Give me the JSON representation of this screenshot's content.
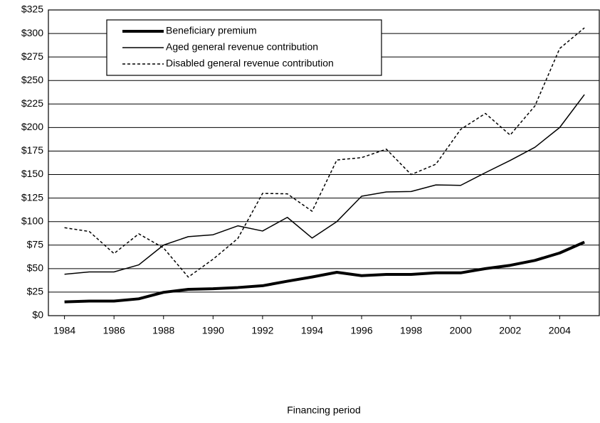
{
  "chart_data": {
    "type": "line",
    "x_label": "Financing period",
    "x": [
      1984,
      1985,
      1986,
      1987,
      1988,
      1989,
      1990,
      1991,
      1992,
      1993,
      1994,
      1995,
      1996,
      1997,
      1998,
      1999,
      2000,
      2001,
      2002,
      2003,
      2004,
      2005
    ],
    "series": [
      {
        "name": "Beneficiary premium",
        "color": "#000000",
        "width": 4,
        "dash": "none",
        "values": [
          14.6,
          15.5,
          15.5,
          17.9,
          24.8,
          28,
          28.6,
          29.9,
          31.8,
          36.6,
          41.1,
          46.1,
          42.5,
          43.8,
          43.8,
          45.5,
          45.5,
          50,
          53.5,
          58.7,
          66.6,
          78.2
        ]
      },
      {
        "name": "Aged general revenue contribution",
        "color": "#000000",
        "width": 1.5,
        "dash": "none",
        "values": [
          44,
          46.5,
          46.5,
          54,
          75,
          84,
          86,
          95.5,
          90,
          104.5,
          82.5,
          100,
          127,
          131.5,
          132,
          139,
          138.5,
          152,
          165,
          179,
          200,
          235
        ]
      },
      {
        "name": "Disabled general revenue contribution",
        "color": "#000000",
        "width": 1.5,
        "dash": "4 3",
        "values": [
          93.5,
          89.5,
          66,
          87,
          72,
          41,
          60,
          82,
          130,
          129.5,
          111,
          165.5,
          168,
          177,
          150,
          161,
          198,
          215,
          192,
          223,
          284,
          306
        ]
      }
    ],
    "xlim": [
      1983.35,
      2005.6
    ],
    "xticks": [
      1984,
      1986,
      1988,
      1990,
      1992,
      1994,
      1996,
      1998,
      2000,
      2002,
      2004
    ],
    "ylim": [
      0,
      325
    ],
    "yticks": [
      {
        "value": 0,
        "label": "$0"
      },
      {
        "value": 25,
        "label": "$25"
      },
      {
        "value": 50,
        "label": "$50"
      },
      {
        "value": 75,
        "label": "$75"
      },
      {
        "value": 100,
        "label": "$100"
      },
      {
        "value": 125,
        "label": "$125"
      },
      {
        "value": 150,
        "label": "$150"
      },
      {
        "value": 175,
        "label": "$175"
      },
      {
        "value": 200,
        "label": "$200"
      },
      {
        "value": 225,
        "label": "$225"
      },
      {
        "value": 250,
        "label": "$250"
      },
      {
        "value": 275,
        "label": "$275"
      },
      {
        "value": 300,
        "label": "$300"
      },
      {
        "value": 325,
        "label": "$325"
      }
    ],
    "grid": true
  }
}
